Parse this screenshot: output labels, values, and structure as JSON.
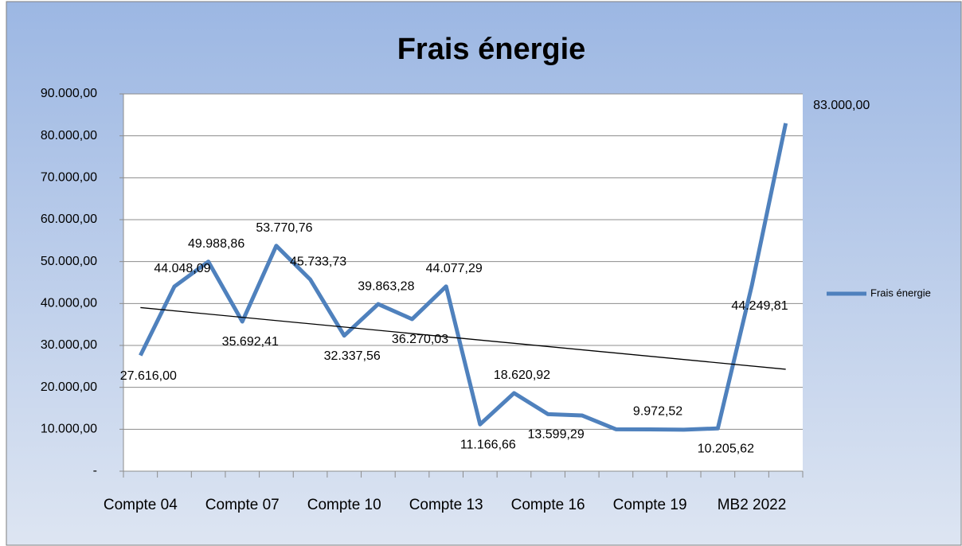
{
  "chart_data": {
    "type": "line",
    "title": "Frais énergie",
    "categories": [
      "Compte 04",
      null,
      null,
      "Compte 07",
      null,
      null,
      "Compte 10",
      null,
      null,
      "Compte 13",
      null,
      null,
      "Compte 16",
      null,
      null,
      "Compte 19",
      null,
      null,
      "MB2 2022",
      null
    ],
    "series": [
      {
        "name": "Frais énergie",
        "color": "#4f81bd",
        "values": [
          27616.0,
          44048.09,
          49988.86,
          35692.41,
          53770.76,
          45733.73,
          32337.56,
          39863.28,
          36270.03,
          44077.29,
          11166.66,
          18620.92,
          13599.29,
          13300,
          10000,
          9972.52,
          9900,
          10205.62,
          44249.81,
          83000.0
        ],
        "value_labels": [
          "27.616,00",
          "44.048,09",
          "49.988,86",
          "35.692,41",
          "53.770,76",
          "45.733,73",
          "32.337,56",
          "39.863,28",
          "36.270,03",
          "44.077,29",
          "11.166,66",
          "18.620,92",
          "13.599,29",
          null,
          null,
          "9.972,52",
          null,
          "10.205,62",
          "44.249,81",
          "83.000,00"
        ]
      }
    ],
    "trendline": "linear",
    "ylim": [
      0,
      90000
    ],
    "yticks": [
      {
        "value": 0,
        "label": "-"
      },
      {
        "value": 10000,
        "label": "10.000,00"
      },
      {
        "value": 20000,
        "label": "20.000,00"
      },
      {
        "value": 30000,
        "label": "30.000,00"
      },
      {
        "value": 40000,
        "label": "40.000,00"
      },
      {
        "value": 50000,
        "label": "50.000,00"
      },
      {
        "value": 60000,
        "label": "60.000,00"
      },
      {
        "value": 70000,
        "label": "70.000,00"
      },
      {
        "value": 80000,
        "label": "80.000,00"
      },
      {
        "value": 90000,
        "label": "90.000,00"
      }
    ],
    "grid": true,
    "legend": "right"
  }
}
